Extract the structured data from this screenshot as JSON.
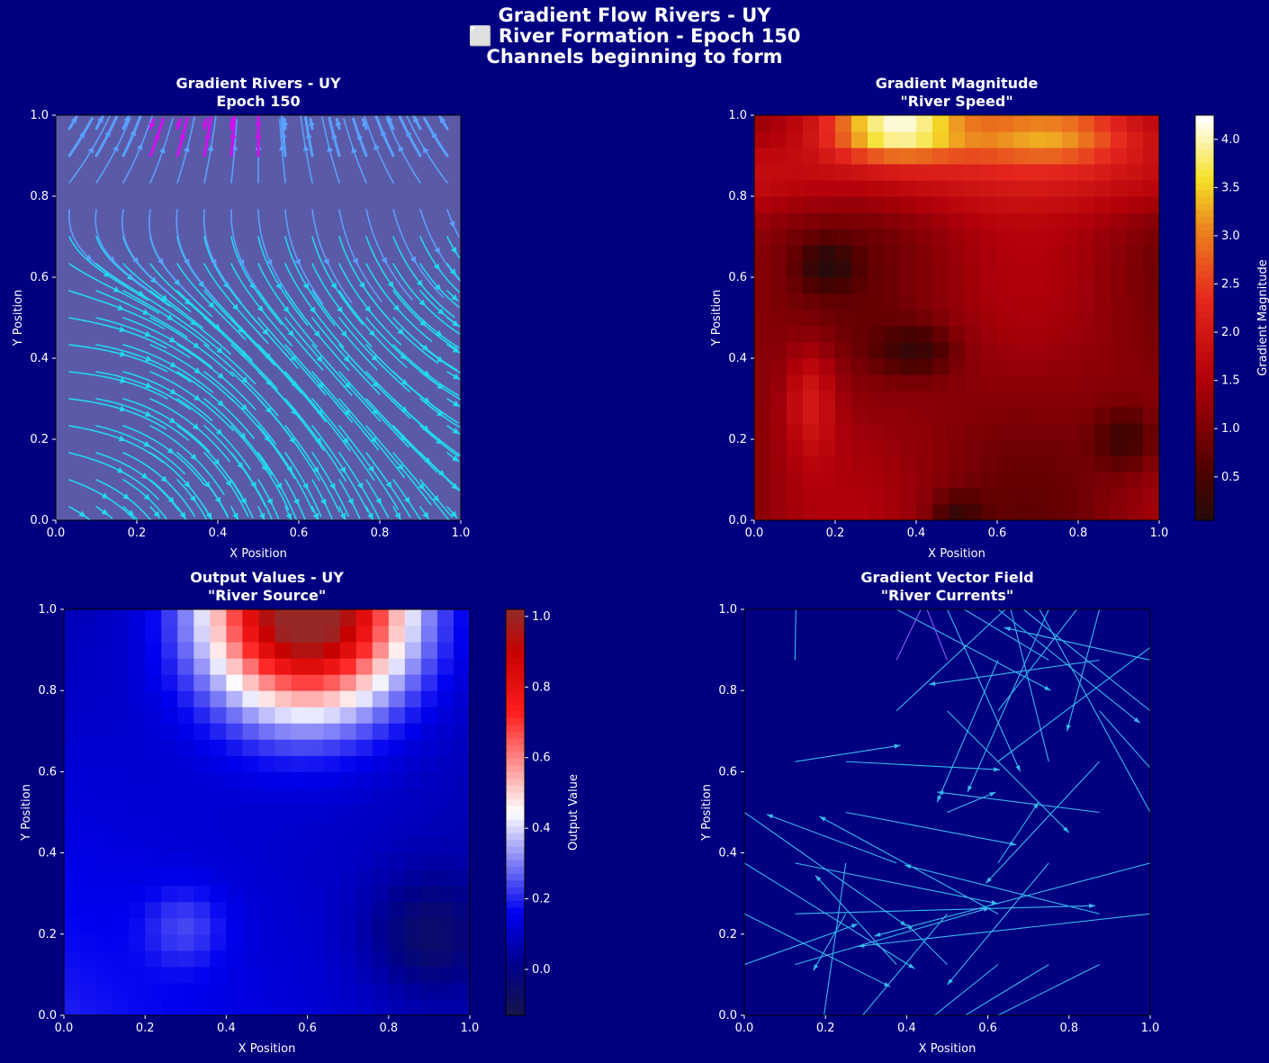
{
  "figure": {
    "title_lines": [
      "Gradient Flow Rivers - UY",
      "⬜ River Formation - Epoch 150",
      "Channels beginning to form"
    ],
    "background": "#000080"
  },
  "chart_data": [
    {
      "type": "streamplot",
      "title_lines": [
        "Gradient Rivers - UY",
        "Epoch 150"
      ],
      "xlabel": "X Position",
      "ylabel": "Y Position",
      "xlim": [
        0,
        1
      ],
      "ylim": [
        0,
        1
      ],
      "xticks": [
        "0.0",
        "0.2",
        "0.4",
        "0.6",
        "0.8",
        "1.0"
      ],
      "yticks": [
        "0.0",
        "0.2",
        "0.4",
        "0.6",
        "0.8",
        "1.0"
      ],
      "colors": {
        "low": "#22d8f0",
        "mid": "#5aa0ff",
        "high": "#d010f0",
        "background": "#5a5aa8"
      }
    },
    {
      "type": "heatmap",
      "title_lines": [
        "Gradient Magnitude",
        "\"River Speed\""
      ],
      "xlabel": "X Position",
      "ylabel": "Y Position",
      "xlim": [
        0,
        1
      ],
      "ylim": [
        0,
        1
      ],
      "xticks": [
        "0.0",
        "0.2",
        "0.4",
        "0.6",
        "0.8",
        "1.0"
      ],
      "yticks": [
        "0.0",
        "0.2",
        "0.4",
        "0.6",
        "0.8",
        "1.0"
      ],
      "colorbar": {
        "label": "Gradient Magnitude",
        "ticks": [
          "0.5",
          "1.0",
          "1.5",
          "2.0",
          "2.5",
          "3.0",
          "3.5",
          "4.0"
        ],
        "range": [
          0.05,
          4.25
        ],
        "colormap": "hot"
      }
    },
    {
      "type": "heatmap",
      "title_lines": [
        "Output Values - UY",
        "\"River Source\""
      ],
      "xlabel": "X Position",
      "ylabel": "Y Position",
      "xlim": [
        0,
        1
      ],
      "ylim": [
        0,
        1
      ],
      "xticks": [
        "0.0",
        "0.2",
        "0.4",
        "0.6",
        "0.8",
        "1.0"
      ],
      "yticks": [
        "0.0",
        "0.2",
        "0.4",
        "0.6",
        "0.8",
        "1.0"
      ],
      "colorbar": {
        "label": "Output Value",
        "ticks": [
          "0.0",
          "0.2",
          "0.4",
          "0.6",
          "0.8",
          "1.0"
        ],
        "range": [
          -0.13,
          1.02
        ],
        "colormap": "seismic"
      }
    },
    {
      "type": "quiver",
      "title_lines": [
        "Gradient Vector Field",
        "\"River Currents\""
      ],
      "xlabel": "X Position",
      "ylabel": "Y Position",
      "xlim": [
        0,
        1
      ],
      "ylim": [
        0,
        1
      ],
      "xticks": [
        "0.0",
        "0.2",
        "0.4",
        "0.6",
        "0.8",
        "1.0"
      ],
      "yticks": [
        "0.0",
        "0.2",
        "0.4",
        "0.6",
        "0.8",
        "1.0"
      ],
      "arrows": [
        {
          "x": 0.125,
          "y": 0.875,
          "u": 0.005,
          "v": 0.3
        },
        {
          "x": 0.125,
          "y": 0.625,
          "u": 0.26,
          "v": 0.04
        },
        {
          "x": 0.25,
          "y": 0.625,
          "u": 0.38,
          "v": -0.02
        },
        {
          "x": 0.25,
          "y": 0.5,
          "u": 0.42,
          "v": -0.08
        },
        {
          "x": 0.375,
          "y": 0.875,
          "u": 0.12,
          "v": 0.25
        },
        {
          "x": 0.375,
          "y": 1.0,
          "u": 0.38,
          "v": -0.2
        },
        {
          "x": 0.5,
          "y": 1.0,
          "u": 0.18,
          "v": -0.4
        },
        {
          "x": 0.5,
          "y": 0.875,
          "u": -0.08,
          "v": 0.2
        },
        {
          "x": 0.625,
          "y": 0.625,
          "u": 0.4,
          "v": 0.3
        },
        {
          "x": 0.625,
          "y": 0.75,
          "u": 0.35,
          "v": 0.45
        },
        {
          "x": 0.75,
          "y": 0.625,
          "u": -0.1,
          "v": 0.4
        },
        {
          "x": 0.75,
          "y": 0.875,
          "u": -0.5,
          "v": 0.3
        },
        {
          "x": 0.875,
          "y": 0.875,
          "u": -0.42,
          "v": -0.06
        },
        {
          "x": 0.875,
          "y": 0.75,
          "u": 0.4,
          "v": -0.45
        },
        {
          "x": 1.0,
          "y": 0.75,
          "u": -0.35,
          "v": 0.28
        },
        {
          "x": 1.0,
          "y": 0.5,
          "u": -0.3,
          "v": 0.55
        },
        {
          "x": 0.875,
          "y": 0.5,
          "u": -0.4,
          "v": 0.05
        },
        {
          "x": 0.75,
          "y": 0.375,
          "u": -0.25,
          "v": -0.3
        },
        {
          "x": 0.625,
          "y": 0.375,
          "u": 0.1,
          "v": 0.15
        },
        {
          "x": 0.5,
          "y": 0.5,
          "u": 0.12,
          "v": 0.05
        },
        {
          "x": 0.375,
          "y": 0.375,
          "u": -0.32,
          "v": 0.12
        },
        {
          "x": 0.375,
          "y": 0.125,
          "u": -0.2,
          "v": 0.22
        },
        {
          "x": 0.25,
          "y": 0.25,
          "u": -0.08,
          "v": -0.14
        },
        {
          "x": 0.25,
          "y": 0.375,
          "u": -0.06,
          "v": -0.42
        },
        {
          "x": 0.125,
          "y": 0.375,
          "u": 0.5,
          "v": -0.1
        },
        {
          "x": 0.125,
          "y": 0.25,
          "u": 0.74,
          "v": 0.02
        },
        {
          "x": 0.0,
          "y": 0.25,
          "u": 0.36,
          "v": -0.18
        },
        {
          "x": 0.0,
          "y": 0.125,
          "u": 0.28,
          "v": 0.1
        },
        {
          "x": 0.125,
          "y": 0.125,
          "u": 0.48,
          "v": 0.14
        },
        {
          "x": 0.5,
          "y": 0.125,
          "u": -0.1,
          "v": 0.1
        },
        {
          "x": 0.625,
          "y": 0.125,
          "u": -0.2,
          "v": -0.16
        },
        {
          "x": 0.75,
          "y": 0.125,
          "u": -0.23,
          "v": -0.14
        },
        {
          "x": 0.875,
          "y": 0.125,
          "u": -0.4,
          "v": -0.2
        },
        {
          "x": 1.0,
          "y": 0.25,
          "u": -0.72,
          "v": -0.08
        },
        {
          "x": 1.0,
          "y": 0.375,
          "u": -0.68,
          "v": -0.18
        },
        {
          "x": 0.875,
          "y": 0.25,
          "u": -0.48,
          "v": 0.12
        },
        {
          "x": 0.625,
          "y": 0.25,
          "u": -0.44,
          "v": 0.24
        },
        {
          "x": 0.5,
          "y": 0.25,
          "u": -0.25,
          "v": -0.3
        },
        {
          "x": 0.0,
          "y": 0.5,
          "u": 0.4,
          "v": -0.28
        },
        {
          "x": 0.0,
          "y": 0.375,
          "u": 0.42,
          "v": -0.26
        },
        {
          "x": 0.875,
          "y": 0.625,
          "u": -0.28,
          "v": -0.3
        },
        {
          "x": 0.625,
          "y": 0.875,
          "u": -0.15,
          "v": -0.35
        },
        {
          "x": 0.75,
          "y": 1.0,
          "u": -0.2,
          "v": -0.45
        },
        {
          "x": 0.625,
          "y": 1.0,
          "u": 0.35,
          "v": -0.28
        },
        {
          "x": 0.375,
          "y": 0.75,
          "u": 0.3,
          "v": 0.28
        },
        {
          "x": 0.5,
          "y": 0.75,
          "u": 0.3,
          "v": -0.3
        },
        {
          "x": 0.875,
          "y": 1.0,
          "u": -0.08,
          "v": -0.3
        },
        {
          "x": 1.0,
          "y": 0.875,
          "u": -0.36,
          "v": 0.08
        }
      ]
    }
  ]
}
